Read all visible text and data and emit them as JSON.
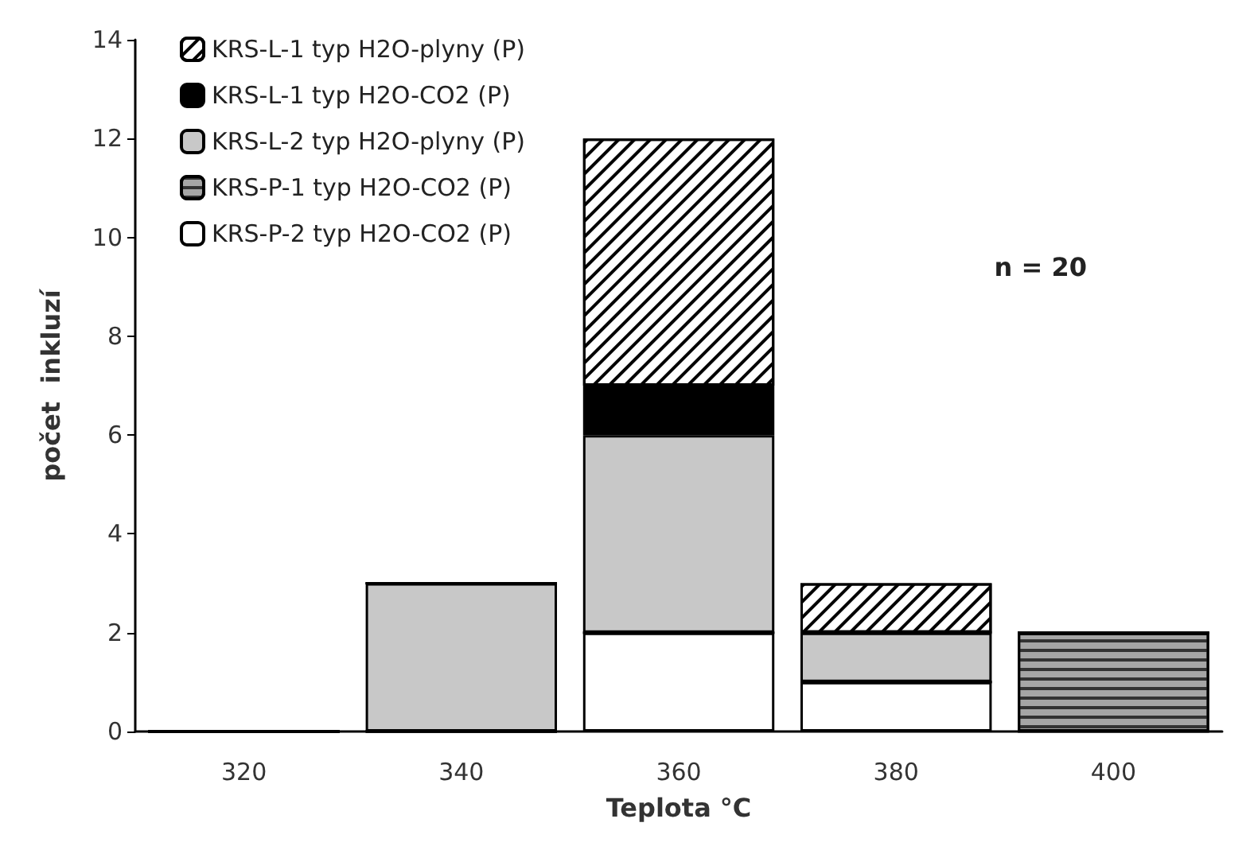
{
  "chart_data": {
    "type": "bar",
    "stacked": true,
    "xlabel": "Teplota °C",
    "ylabel": "počet  inkluzí",
    "categories": [
      "320",
      "340",
      "360",
      "380",
      "400"
    ],
    "series": [
      {
        "name": "KRS-P-2 typ H2O-CO2 (P)",
        "color": "#ffffff",
        "values": [
          0,
          0,
          2,
          1,
          0
        ]
      },
      {
        "name": "KRS-P-1 typ H2O-CO2 (P)",
        "color": "#a6a6a6",
        "values": [
          0,
          0,
          0,
          0,
          2
        ]
      },
      {
        "name": "KRS-L-2 typ H2O-plyny (P)",
        "color": "#c8c8c8",
        "values": [
          0,
          3,
          4,
          1,
          0
        ]
      },
      {
        "name": "KRS-L-1 typ H2O-CO2 (P)",
        "color": "#000000",
        "values": [
          0,
          0,
          1,
          0,
          0
        ]
      },
      {
        "name": "KRS-L-1 typ H2O-plyny (P)",
        "color": "#ffffff",
        "values": [
          0,
          0,
          5,
          1,
          0
        ]
      }
    ],
    "ylim": [
      0,
      14
    ],
    "yticks": [
      0,
      2,
      4,
      6,
      8,
      10,
      12,
      14
    ],
    "grid": false,
    "legend": "top left",
    "annotations": [
      "n = 20"
    ]
  }
}
